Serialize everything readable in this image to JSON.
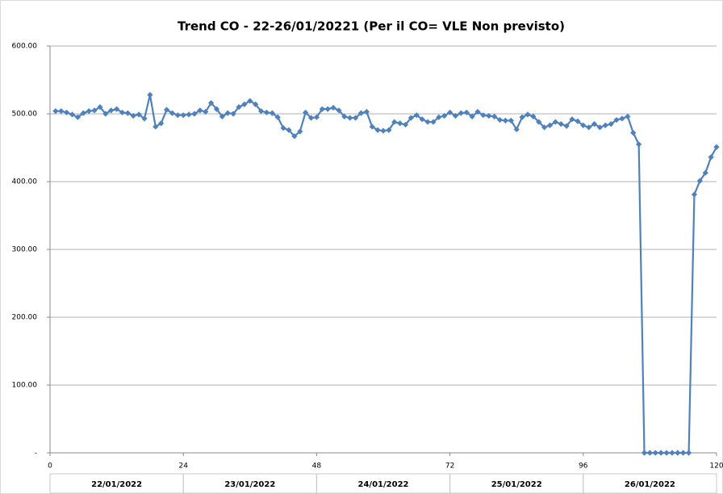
{
  "chart_data": {
    "type": "line",
    "title": "Trend CO - 22-26/01/20221  (Per il CO= VLE Non previsto)",
    "x": [
      1,
      2,
      3,
      4,
      5,
      6,
      7,
      8,
      9,
      10,
      11,
      12,
      13,
      14,
      15,
      16,
      17,
      18,
      19,
      20,
      21,
      22,
      23,
      24,
      25,
      26,
      27,
      28,
      29,
      30,
      31,
      32,
      33,
      34,
      35,
      36,
      37,
      38,
      39,
      40,
      41,
      42,
      43,
      44,
      45,
      46,
      47,
      48,
      49,
      50,
      51,
      52,
      53,
      54,
      55,
      56,
      57,
      58,
      59,
      60,
      61,
      62,
      63,
      64,
      65,
      66,
      67,
      68,
      69,
      70,
      71,
      72,
      73,
      74,
      75,
      76,
      77,
      78,
      79,
      80,
      81,
      82,
      83,
      84,
      85,
      86,
      87,
      88,
      89,
      90,
      91,
      92,
      93,
      94,
      95,
      96,
      97,
      98,
      99,
      100,
      101,
      102,
      103,
      104,
      105,
      106,
      107,
      108,
      109,
      110,
      111,
      112,
      113,
      114,
      115,
      116,
      117,
      118,
      119,
      120
    ],
    "series": [
      {
        "name": "CO",
        "color": "#4f81bd",
        "values": [
          504,
          504,
          502,
          499,
          495,
          501,
          504,
          505,
          510,
          500,
          505,
          507,
          502,
          501,
          497,
          499,
          493,
          528,
          481,
          486,
          506,
          501,
          498,
          498,
          499,
          500,
          505,
          503,
          516,
          507,
          496,
          501,
          500,
          510,
          514,
          519,
          514,
          504,
          502,
          501,
          495,
          479,
          476,
          467,
          474,
          502,
          494,
          495,
          507,
          507,
          509,
          505,
          496,
          494,
          494,
          501,
          503,
          481,
          476,
          475,
          476,
          488,
          486,
          484,
          494,
          498,
          492,
          488,
          488,
          495,
          497,
          502,
          497,
          501,
          502,
          496,
          503,
          498,
          497,
          496,
          491,
          490,
          490,
          477,
          495,
          499,
          496,
          488,
          480,
          483,
          488,
          485,
          482,
          492,
          489,
          483,
          480,
          485,
          480,
          483,
          485,
          491,
          493,
          496,
          472,
          455,
          0,
          0,
          0,
          0,
          0,
          0,
          0,
          0,
          0,
          381,
          401,
          413,
          436,
          451
        ]
      }
    ],
    "xlim": [
      0,
      120
    ],
    "xticks": [
      0,
      24,
      48,
      72,
      96,
      120
    ],
    "ylim": [
      0,
      600
    ],
    "yticks": [
      {
        "value": 0,
        "label": "-"
      },
      {
        "value": 100,
        "label": "100.00"
      },
      {
        "value": 200,
        "label": "200.00"
      },
      {
        "value": 300,
        "label": "300.00"
      },
      {
        "value": 400,
        "label": "400.00"
      },
      {
        "value": 500,
        "label": "500.00"
      },
      {
        "value": 600,
        "label": "600.00"
      }
    ],
    "grid": true,
    "date_labels": [
      "22/01/2022",
      "23/01/2022",
      "24/01/2022",
      "25/01/2022",
      "26/01/2022"
    ]
  }
}
